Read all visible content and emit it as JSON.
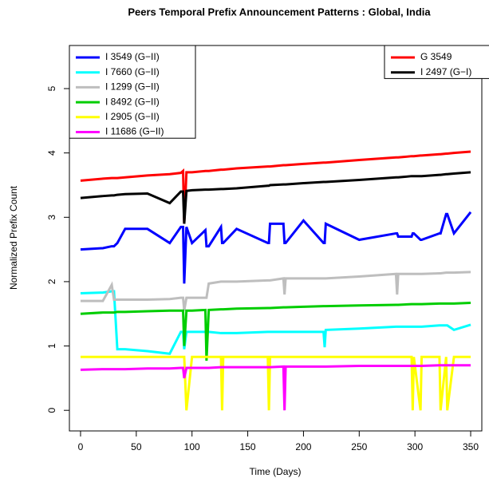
{
  "chart_data": {
    "type": "line",
    "title": "Peers Temporal Prefix Announcement Patterns : Global, India",
    "x_label": "Time (Days)",
    "y_label": "Normalized Prefix Count",
    "x": [
      0,
      20,
      28,
      30,
      33,
      40,
      60,
      80,
      90,
      92,
      93,
      95,
      100,
      112,
      113,
      115,
      126,
      127,
      128,
      140,
      168,
      169,
      170,
      182,
      183,
      184,
      200,
      218,
      219,
      220,
      250,
      283,
      284,
      285,
      297,
      298,
      299,
      305,
      306,
      322,
      323,
      328,
      329,
      335,
      350
    ],
    "series": [
      {
        "name": "I 3549 (G−II)",
        "color": "#0000ff",
        "legend": "topleft",
        "values": [
          2.5,
          2.52,
          2.55,
          2.55,
          2.6,
          2.82,
          2.82,
          2.6,
          2.85,
          2.85,
          1.97,
          2.85,
          2.6,
          2.8,
          2.55,
          2.55,
          2.85,
          2.6,
          2.6,
          2.82,
          2.6,
          2.6,
          2.9,
          2.9,
          2.6,
          2.6,
          2.95,
          2.6,
          2.6,
          2.9,
          2.65,
          2.75,
          2.75,
          2.7,
          2.7,
          2.75,
          2.75,
          2.65,
          2.65,
          2.75,
          2.75,
          3.05,
          3.05,
          2.75,
          3.08
        ]
      },
      {
        "name": "I 7660 (G−II)",
        "color": "#00ffff",
        "legend": "topleft",
        "values": [
          1.82,
          1.83,
          1.85,
          1.85,
          0.95,
          0.95,
          0.92,
          0.88,
          1.22,
          1.22,
          0.95,
          1.22,
          1.22,
          1.22,
          1.22,
          1.22,
          1.2,
          1.2,
          1.2,
          1.2,
          1.22,
          1.22,
          1.22,
          1.22,
          1.22,
          1.22,
          1.22,
          1.22,
          0.98,
          1.25,
          1.27,
          1.3,
          1.3,
          1.3,
          1.3,
          1.3,
          1.3,
          1.3,
          1.3,
          1.32,
          1.32,
          1.32,
          1.32,
          1.25,
          1.33
        ]
      },
      {
        "name": "I 1299 (G−II)",
        "color": "#bebebe",
        "legend": "topleft",
        "values": [
          1.7,
          1.7,
          1.95,
          1.72,
          1.72,
          1.72,
          1.72,
          1.73,
          1.75,
          1.75,
          1.55,
          1.75,
          1.75,
          1.75,
          1.75,
          1.97,
          2.0,
          2.0,
          2.0,
          2.0,
          2.02,
          2.02,
          2.02,
          2.05,
          1.8,
          2.05,
          2.05,
          2.05,
          2.05,
          2.05,
          2.08,
          2.12,
          1.8,
          2.12,
          2.12,
          2.12,
          2.12,
          2.12,
          2.12,
          2.13,
          2.13,
          2.14,
          2.14,
          2.14,
          2.15
        ]
      },
      {
        "name": "I 8492 (G−II)",
        "color": "#00cd00",
        "legend": "topleft",
        "values": [
          1.5,
          1.52,
          1.52,
          1.52,
          1.53,
          1.53,
          1.54,
          1.55,
          1.55,
          1.55,
          1.0,
          1.55,
          1.55,
          1.56,
          0.77,
          1.56,
          1.57,
          1.57,
          1.57,
          1.58,
          1.59,
          1.59,
          1.59,
          1.6,
          1.6,
          1.6,
          1.61,
          1.62,
          1.62,
          1.62,
          1.63,
          1.64,
          1.64,
          1.64,
          1.65,
          1.65,
          1.65,
          1.65,
          1.65,
          1.66,
          1.66,
          1.66,
          1.66,
          1.66,
          1.67
        ]
      },
      {
        "name": "I 2905 (G−II)",
        "color": "#ffff00",
        "legend": "topleft",
        "values": [
          0.83,
          0.83,
          0.83,
          0.83,
          0.83,
          0.83,
          0.83,
          0.83,
          0.83,
          0.83,
          0.83,
          0,
          0.83,
          0.83,
          0.83,
          0.83,
          0.83,
          0,
          0.83,
          0.83,
          0.83,
          0,
          0.83,
          0.83,
          0.83,
          0.83,
          0.83,
          0.83,
          0.83,
          0.83,
          0.83,
          0.83,
          0.83,
          0.83,
          0.83,
          0,
          0.83,
          0,
          0.83,
          0.83,
          0,
          0.83,
          0,
          0.83,
          0.83
        ]
      },
      {
        "name": "I 11686 (G−II)",
        "color": "#ff00ff",
        "legend": "topleft",
        "values": [
          0.63,
          0.64,
          0.64,
          0.64,
          0.64,
          0.64,
          0.65,
          0.65,
          0.66,
          0.66,
          0.5,
          0.66,
          0.66,
          0.66,
          0.66,
          0.66,
          0.67,
          0.67,
          0.67,
          0.67,
          0.67,
          0.67,
          0.67,
          0.68,
          0,
          0.68,
          0.68,
          0.68,
          0.68,
          0.68,
          0.69,
          0.69,
          0.69,
          0.69,
          0.69,
          0.69,
          0.69,
          0.69,
          0.69,
          0.7,
          0.7,
          0.7,
          0.7,
          0.7,
          0.7
        ]
      },
      {
        "name": "G 3549",
        "color": "#ff0000",
        "legend": "topright",
        "values": [
          3.57,
          3.6,
          3.61,
          3.61,
          3.61,
          3.62,
          3.65,
          3.67,
          3.69,
          3.72,
          2.9,
          3.7,
          3.7,
          3.72,
          3.72,
          3.72,
          3.74,
          3.74,
          3.74,
          3.76,
          3.79,
          3.79,
          3.79,
          3.81,
          3.81,
          3.81,
          3.83,
          3.85,
          3.85,
          3.85,
          3.89,
          3.93,
          3.93,
          3.93,
          3.95,
          3.95,
          3.95,
          3.96,
          3.96,
          3.98,
          3.98,
          3.99,
          3.99,
          4.0,
          4.02
        ]
      },
      {
        "name": "I 2497 (G−I)",
        "color": "#000000",
        "legend": "topright",
        "values": [
          3.3,
          3.33,
          3.34,
          3.34,
          3.35,
          3.36,
          3.37,
          3.22,
          3.4,
          3.4,
          2.9,
          3.41,
          3.42,
          3.43,
          3.43,
          3.43,
          3.44,
          3.44,
          3.44,
          3.45,
          3.49,
          3.49,
          3.5,
          3.51,
          3.51,
          3.51,
          3.53,
          3.55,
          3.55,
          3.55,
          3.58,
          3.62,
          3.62,
          3.62,
          3.64,
          3.64,
          3.64,
          3.64,
          3.64,
          3.66,
          3.66,
          3.67,
          3.67,
          3.68,
          3.7
        ]
      }
    ],
    "xlim": [
      -10,
      360
    ],
    "ylim": [
      -0.32,
      5.67
    ],
    "xticks": [
      0,
      50,
      100,
      150,
      200,
      250,
      300,
      350
    ],
    "yticks": [
      0,
      1,
      2,
      3,
      4,
      5
    ]
  }
}
